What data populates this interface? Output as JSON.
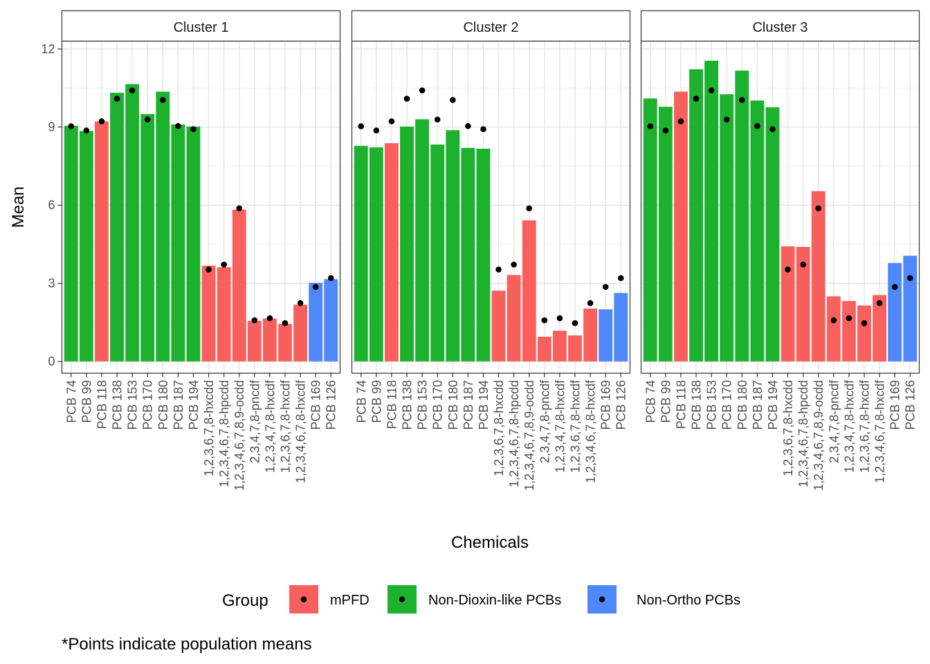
{
  "chart_data": {
    "type": "bar",
    "facets": [
      "Cluster 1",
      "Cluster 2",
      "Cluster 3"
    ],
    "categories": [
      "PCB 74",
      "PCB 99",
      "PCB 118",
      "PCB 138",
      "PCB 153",
      "PCB 170",
      "PCB 180",
      "PCB 187",
      "PCB 194",
      "1,2,3,6,7,8-hxcdd",
      "1,2,3,4,6,7,8-hpcdd",
      "1,2,3,4,6,7,8,9-ocdd",
      "2,3,4,7,8-pncdf",
      "1,2,3,4,7,8-hxcdf",
      "1,2,3,6,7,8-hxcdf",
      "1,2,3,4,6,7,8-hxcdf",
      "PCB 169",
      "PCB 126"
    ],
    "category_groups": [
      "Non-Dioxin-like PCBs",
      "Non-Dioxin-like PCBs",
      "mPFD",
      "Non-Dioxin-like PCBs",
      "Non-Dioxin-like PCBs",
      "Non-Dioxin-like PCBs",
      "Non-Dioxin-like PCBs",
      "Non-Dioxin-like PCBs",
      "Non-Dioxin-like PCBs",
      "mPFD",
      "mPFD",
      "mPFD",
      "mPFD",
      "mPFD",
      "mPFD",
      "mPFD",
      "Non-Ortho PCBs",
      "Non-Ortho PCBs"
    ],
    "series": [
      {
        "name": "Cluster 1",
        "values": [
          9.05,
          8.85,
          9.22,
          10.32,
          10.65,
          9.5,
          10.36,
          9.1,
          9.02,
          3.68,
          3.62,
          5.83,
          1.56,
          1.65,
          1.44,
          2.18,
          3.02,
          3.16
        ]
      },
      {
        "name": "Cluster 2",
        "values": [
          8.28,
          8.22,
          8.38,
          9.02,
          9.3,
          8.33,
          8.88,
          8.2,
          8.17,
          2.72,
          3.32,
          5.42,
          0.95,
          1.18,
          1.0,
          2.03,
          2.0,
          2.63
        ]
      },
      {
        "name": "Cluster 3",
        "values": [
          10.1,
          9.78,
          10.36,
          11.22,
          11.55,
          10.26,
          11.17,
          10.02,
          9.76,
          4.42,
          4.4,
          6.54,
          2.5,
          2.32,
          2.15,
          2.55,
          3.78,
          4.06
        ]
      }
    ],
    "population_means": [
      9.03,
      8.87,
      9.22,
      10.09,
      10.41,
      9.29,
      10.04,
      9.04,
      8.92,
      3.53,
      3.72,
      5.88,
      1.58,
      1.66,
      1.47,
      2.24,
      2.86,
      3.2
    ],
    "ylabel": "Mean",
    "xlabel": "Chemicals",
    "ylim": [
      -0.45,
      12.3
    ],
    "yticks": [
      0,
      3,
      6,
      9,
      12
    ],
    "grid": true,
    "legend": {
      "title": "Group",
      "position": "bottom",
      "entries": [
        {
          "label": "mPFD",
          "color": "#f8605d"
        },
        {
          "label": "Non-Dioxin-like PCBs",
          "color": "#1db22e"
        },
        {
          "label": "Non-Ortho PCBs",
          "color": "#4f88fb"
        }
      ]
    },
    "caption": "*Points indicate population means"
  }
}
